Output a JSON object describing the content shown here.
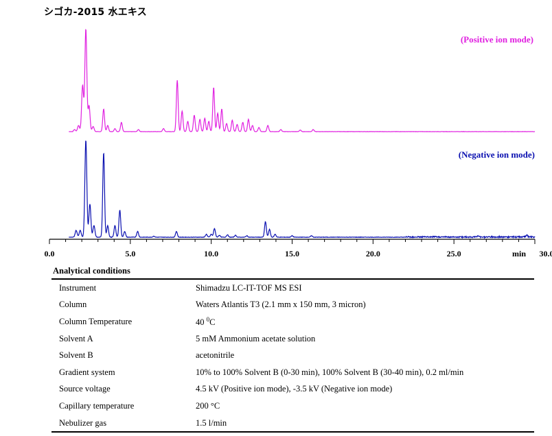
{
  "title": "シゴカ-2015 水エキス",
  "colors": {
    "positive": "#e020e0",
    "negative": "#0a10b0"
  },
  "chart_data": {
    "type": "line",
    "title": "シゴカ-2015 水エキス",
    "xlabel": "min",
    "xlim": [
      0,
      30
    ],
    "x_ticks": [
      "0.0",
      "5.0",
      "10.0",
      "15.0",
      "20.0",
      "25.0",
      "30.0"
    ],
    "tick_values": [
      0,
      5,
      10,
      15,
      20,
      25,
      30
    ],
    "grid": false,
    "series": [
      {
        "name": "(Positive ion mode)",
        "color": "#e020e0",
        "peaks": [
          [
            1.55,
            0.02
          ],
          [
            1.8,
            0.06
          ],
          [
            2.05,
            0.45
          ],
          [
            2.25,
            1.0
          ],
          [
            2.45,
            0.25
          ],
          [
            2.7,
            0.05
          ],
          [
            3.35,
            0.22
          ],
          [
            3.6,
            0.06
          ],
          [
            4.05,
            0.03
          ],
          [
            4.45,
            0.09
          ],
          [
            5.5,
            0.02
          ],
          [
            7.05,
            0.03
          ],
          [
            7.9,
            0.5
          ],
          [
            8.2,
            0.2
          ],
          [
            8.55,
            0.1
          ],
          [
            8.95,
            0.16
          ],
          [
            9.3,
            0.12
          ],
          [
            9.6,
            0.13
          ],
          [
            9.85,
            0.1
          ],
          [
            10.15,
            0.43
          ],
          [
            10.4,
            0.18
          ],
          [
            10.65,
            0.22
          ],
          [
            10.95,
            0.08
          ],
          [
            11.3,
            0.11
          ],
          [
            11.6,
            0.07
          ],
          [
            11.95,
            0.09
          ],
          [
            12.3,
            0.12
          ],
          [
            12.55,
            0.06
          ],
          [
            12.95,
            0.04
          ],
          [
            13.5,
            0.06
          ],
          [
            14.3,
            0.02
          ],
          [
            15.5,
            0.015
          ],
          [
            16.3,
            0.02
          ]
        ]
      },
      {
        "name": "(Negative ion mode)",
        "color": "#0a10b0",
        "peaks": [
          [
            1.65,
            0.07
          ],
          [
            1.9,
            0.07
          ],
          [
            2.25,
            1.0
          ],
          [
            2.5,
            0.34
          ],
          [
            2.75,
            0.12
          ],
          [
            3.35,
            0.87
          ],
          [
            3.6,
            0.12
          ],
          [
            4.05,
            0.12
          ],
          [
            4.35,
            0.28
          ],
          [
            4.65,
            0.06
          ],
          [
            5.45,
            0.06
          ],
          [
            6.45,
            0.01
          ],
          [
            7.85,
            0.06
          ],
          [
            9.7,
            0.03
          ],
          [
            10.0,
            0.03
          ],
          [
            10.2,
            0.09
          ],
          [
            10.5,
            0.02
          ],
          [
            11.0,
            0.025
          ],
          [
            11.5,
            0.02
          ],
          [
            12.2,
            0.015
          ],
          [
            13.35,
            0.16
          ],
          [
            13.6,
            0.08
          ],
          [
            13.95,
            0.03
          ],
          [
            15.0,
            0.015
          ],
          [
            16.2,
            0.015
          ],
          [
            26.5,
            0.01
          ],
          [
            29.5,
            0.02
          ]
        ]
      }
    ]
  },
  "conditions": {
    "heading": "Analytical conditions",
    "rows": [
      {
        "param": "Instrument",
        "value": "Shimadzu LC-IT-TOF MS ESI"
      },
      {
        "param": "Column",
        "value": "Waters Atlantis T3 (2.1 mm x 150 mm, 3 micron)"
      },
      {
        "param": "Column Temperature",
        "value_main": "40 ",
        "value_sup": "0",
        "value_end": "C"
      },
      {
        "param": "Solvent A",
        "value": "5 mM Ammonium acetate solution"
      },
      {
        "param": "Solvent B",
        "value": "acetonitrile"
      },
      {
        "param": "Gradient system",
        "value": "10% to 100% Solvent B (0-30 min), 100% Solvent B (30-40 min), 0.2 ml/min"
      },
      {
        "param": "Source voltage",
        "value": "4.5 kV (Positive ion mode), -3.5 kV (Negative ion mode)"
      },
      {
        "param": "Capillary temperature",
        "value": "200 °C"
      },
      {
        "param": "Nebulizer gas",
        "value": "1.5 l/min"
      }
    ]
  }
}
